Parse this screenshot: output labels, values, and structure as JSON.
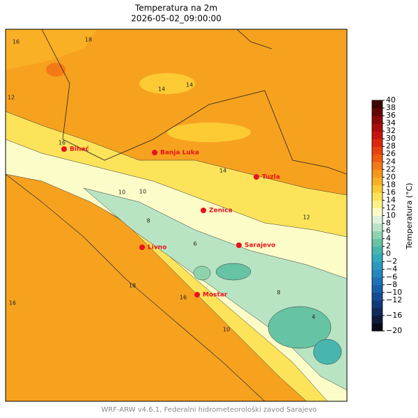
{
  "header": {
    "title": "Temperatura na 2m",
    "subtitle": "2026-05-02_09:00:00"
  },
  "cities": [
    "Bihać",
    "Banja Luka",
    "Tuzla",
    "Zenica",
    "Livno",
    "Sarajevo",
    "Mostar"
  ],
  "contour_labels": [
    18,
    16,
    14,
    14,
    12,
    10,
    10,
    8,
    6,
    16,
    18,
    16,
    14,
    12,
    10,
    8,
    4,
    16
  ],
  "colorbar": {
    "label": "Temperatura (°C)",
    "lim": [
      -20,
      40
    ],
    "ticks": [
      {
        "value": -20,
        "label": "−20"
      },
      {
        "value": -16,
        "label": "−16"
      },
      {
        "value": -12,
        "label": "−12"
      },
      {
        "value": -10,
        "label": "−10"
      },
      {
        "value": -8,
        "label": "−8"
      },
      {
        "value": -6,
        "label": "−6"
      },
      {
        "value": -4,
        "label": "−4"
      },
      {
        "value": -2,
        "label": "−2"
      },
      0,
      2,
      4,
      6,
      8,
      10,
      12,
      14,
      16,
      18,
      20,
      22,
      24,
      26,
      28,
      30,
      32,
      34,
      36,
      38,
      40
    ],
    "colors": [
      "#0a0a1a",
      "#0d1a3a",
      "#10285a",
      "#123878",
      "#144a92",
      "#1a5ea8",
      "#1f72b8",
      "#2586be",
      "#2c98c0",
      "#35a9bc",
      "#48b6ae",
      "#66c3a4",
      "#8fd2ae",
      "#b9e4c4",
      "#def3dc",
      "#fcfcc8",
      "#fdf28a",
      "#fde35a",
      "#fccb34",
      "#f9b024",
      "#f7961c",
      "#f47a16",
      "#ef5c12",
      "#e8400f",
      "#dc260d",
      "#c6140c",
      "#a80c0c",
      "#880a0a",
      "#640606",
      "#400404"
    ]
  },
  "footer": "WRF-ARW v4.6.1, Federalni hidrometeorološki zavod Sarajevo"
}
